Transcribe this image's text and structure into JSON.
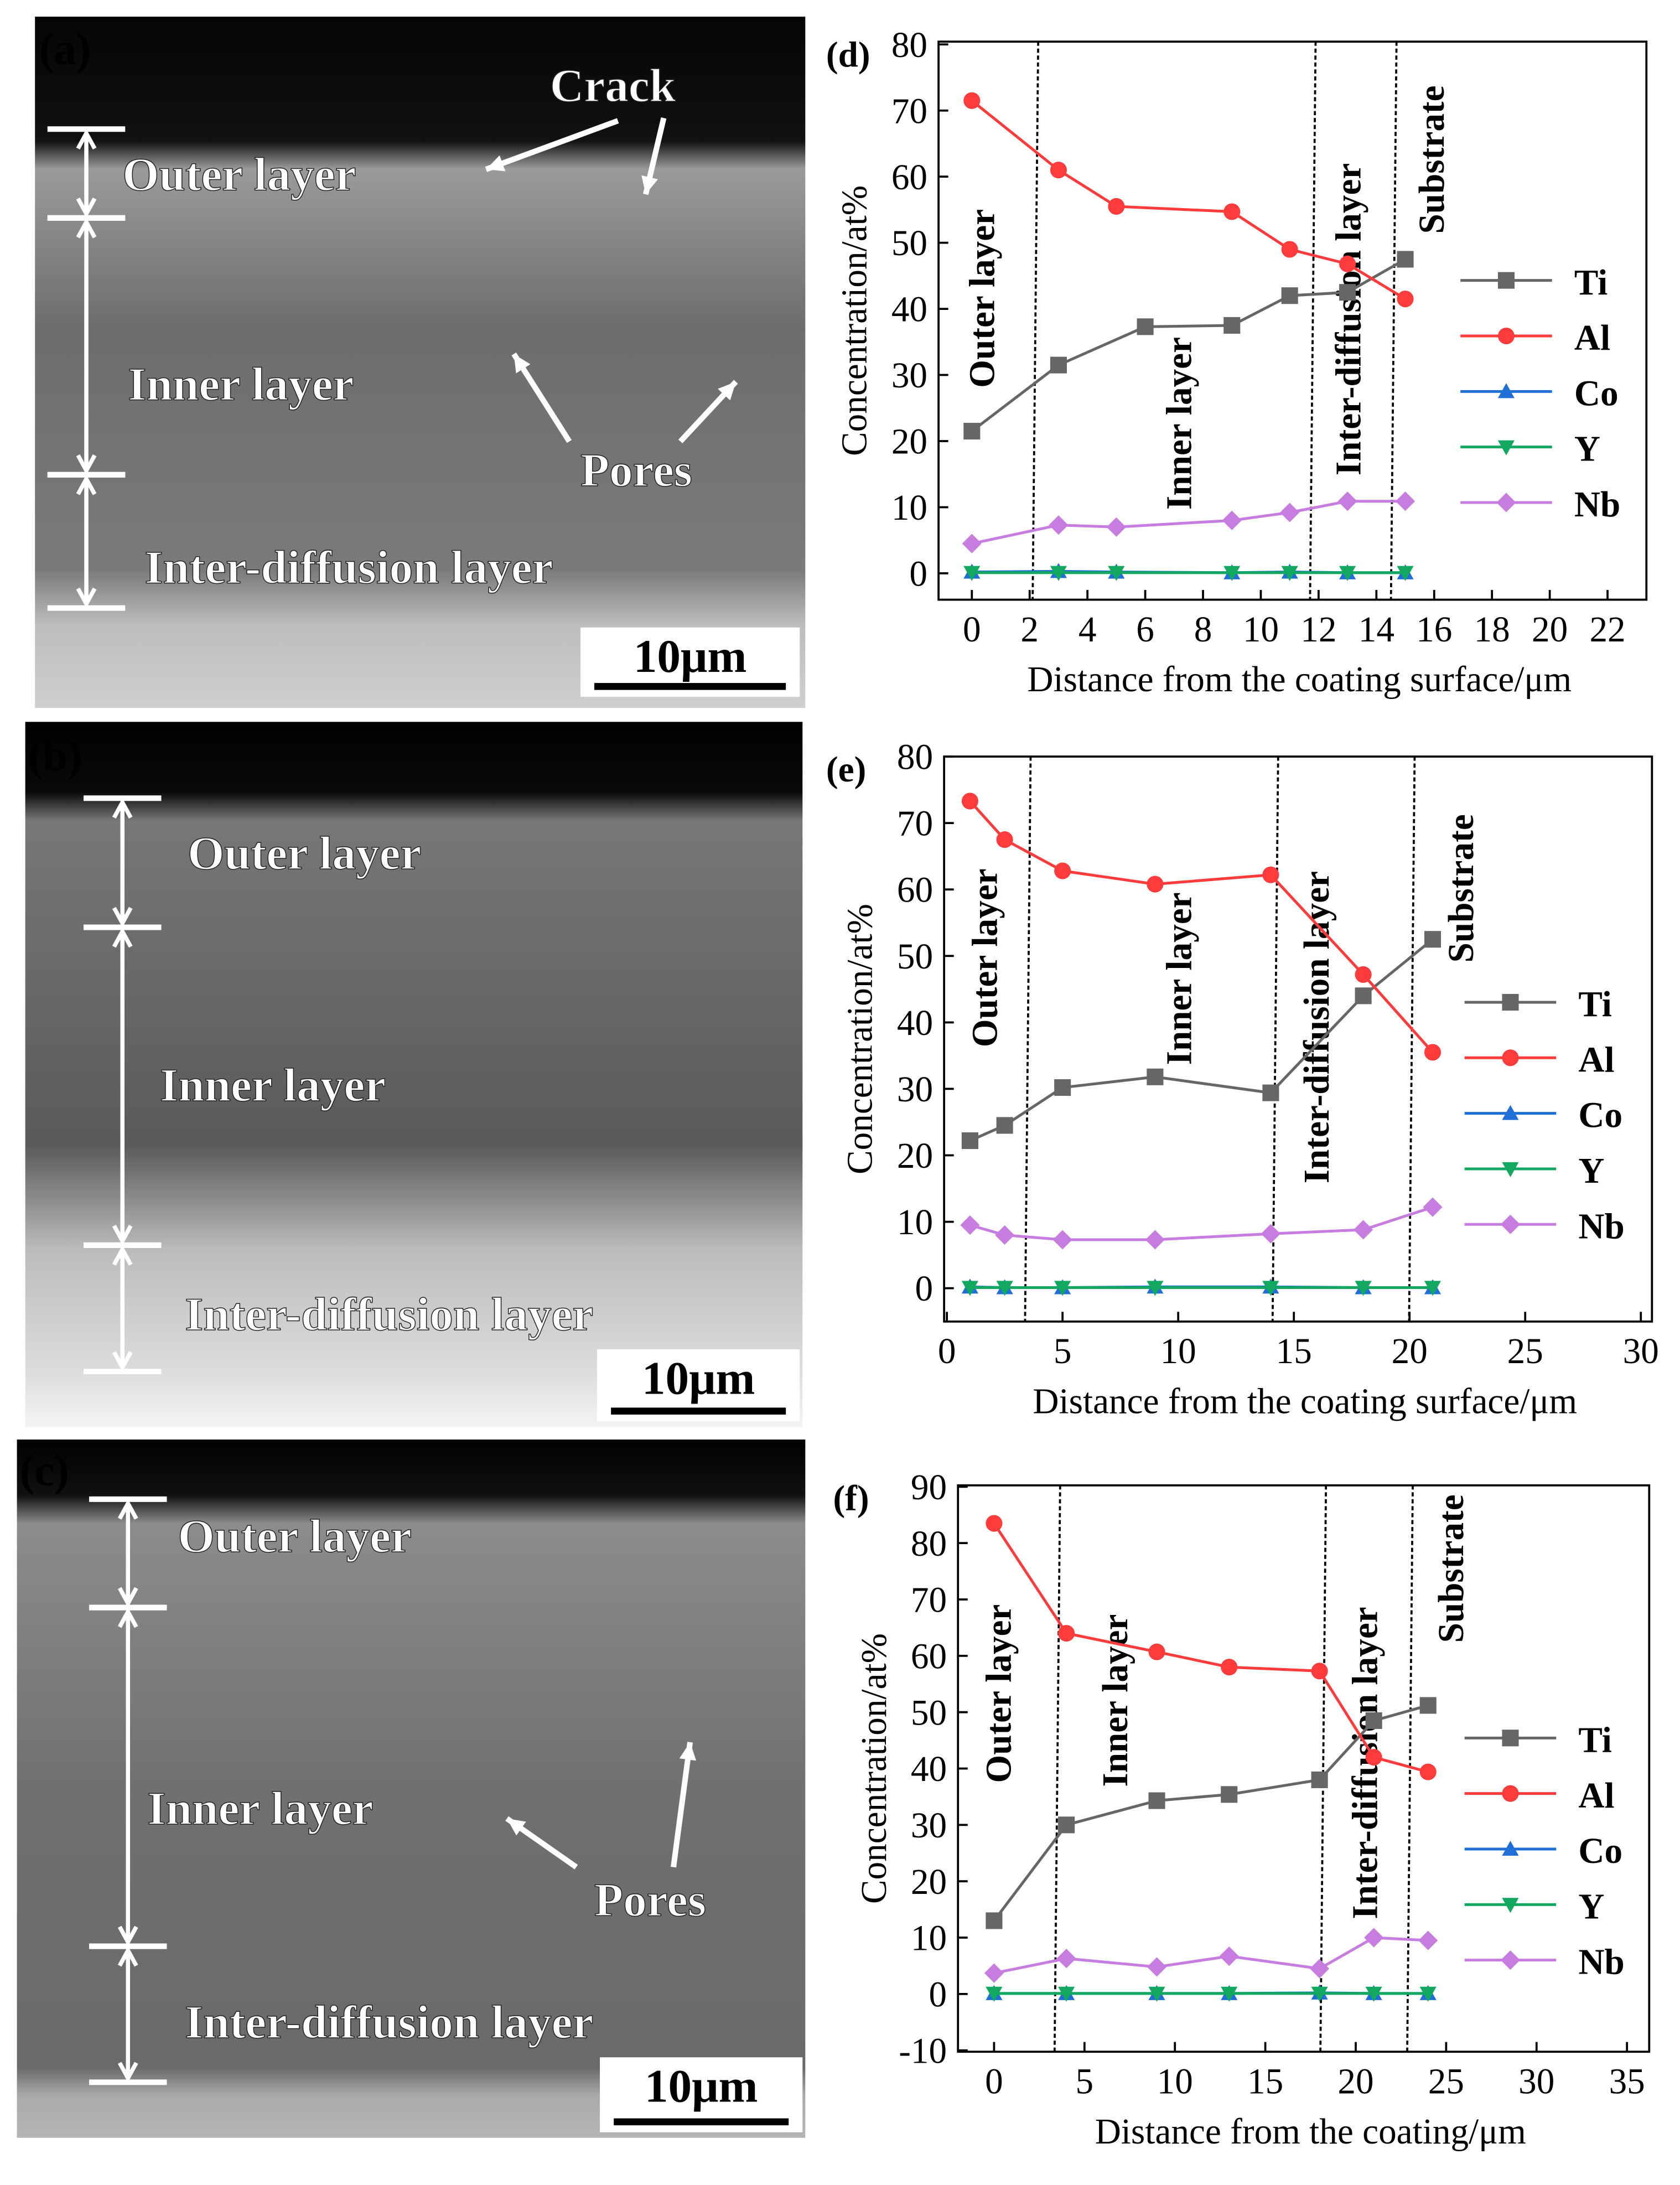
{
  "panels": [
    {
      "letter": "(a)",
      "labels": [
        "Outer layer",
        "Inner layer",
        "Inter-diffusion layer",
        "Crack",
        "Pores"
      ],
      "scale_bar": "10μm"
    },
    {
      "letter": "(b)",
      "labels": [
        "Outer layer",
        "Inner layer",
        "Inter-diffusion layer"
      ],
      "scale_bar": "10μm"
    },
    {
      "letter": "(c)",
      "labels": [
        "Outer layer",
        "Inner layer",
        "Inter-diffusion layer",
        "Pores"
      ],
      "scale_bar": "10μm"
    }
  ],
  "colors": {
    "Ti": "#666666",
    "Al": "#ff3b3b",
    "Co": "#1f6fd6",
    "Y": "#12a860",
    "Nb": "#c77ce0"
  },
  "chart_data": [
    {
      "type": "line",
      "letter": "(d)",
      "xlabel": "Distance from the coating surface/μm",
      "ylabel": "Concentration/at%",
      "xlim": [
        0,
        22
      ],
      "ylim": [
        0,
        80
      ],
      "xticks": [
        0,
        2,
        4,
        6,
        8,
        10,
        12,
        14,
        16,
        18,
        20,
        22
      ],
      "yticks": [
        0,
        10,
        20,
        30,
        40,
        50,
        60,
        70,
        80
      ],
      "boundaries": [
        2.2,
        11.8,
        14.6
      ],
      "regions": [
        "Outer layer",
        "Inner layer",
        "Inter-diffusion layer",
        "Substrate"
      ],
      "x": [
        0,
        3,
        6,
        9,
        11,
        13,
        15
      ],
      "series": [
        {
          "name": "Ti",
          "marker": "square",
          "values": [
            21.5,
            31.5,
            37.3,
            37.5,
            42,
            42.5,
            47.5
          ]
        },
        {
          "name": "Al",
          "marker": "circle",
          "x": [
            0,
            3,
            5,
            9,
            11,
            13,
            15
          ],
          "values": [
            71.5,
            61,
            55.5,
            54.7,
            49,
            46.8,
            41.5
          ]
        },
        {
          "name": "Co",
          "marker": "triangle-up",
          "x": [
            0,
            3,
            5,
            9,
            11,
            13,
            15
          ],
          "values": [
            0.2,
            0.3,
            0.2,
            0.1,
            0.2,
            0.1,
            0.1
          ]
        },
        {
          "name": "Y",
          "marker": "triangle-down",
          "x": [
            0,
            3,
            5,
            9,
            11,
            13,
            15
          ],
          "values": [
            0.1,
            0.1,
            0.1,
            0.1,
            0.1,
            0.1,
            0.1
          ]
        },
        {
          "name": "Nb",
          "marker": "diamond",
          "x": [
            0,
            3,
            5,
            9,
            11,
            13,
            15
          ],
          "values": [
            4.5,
            7.3,
            7.0,
            8.0,
            9.2,
            10.9,
            10.9
          ]
        }
      ]
    },
    {
      "type": "line",
      "letter": "(e)",
      "xlabel": "Distance from the coating surface/μm",
      "ylabel": "Concentration/at%",
      "xlim": [
        0,
        30
      ],
      "ylim": [
        0,
        80
      ],
      "xticks": [
        0,
        5,
        10,
        15,
        20,
        25,
        30
      ],
      "yticks": [
        0,
        10,
        20,
        30,
        40,
        50,
        60,
        70,
        80
      ],
      "boundaries": [
        3.5,
        14.2,
        20.1
      ],
      "regions": [
        "Outer layer",
        "Inner layer",
        "Inter-diffusion layer",
        "Substrate"
      ],
      "x": [
        1,
        2.5,
        5,
        9,
        14,
        18,
        21
      ],
      "series": [
        {
          "name": "Ti",
          "marker": "square",
          "values": [
            22.2,
            24.5,
            30.2,
            31.8,
            29.4,
            44,
            52.5
          ]
        },
        {
          "name": "Al",
          "marker": "circle",
          "values": [
            73.3,
            67.5,
            62.8,
            60.8,
            62.2,
            47.2,
            35.5
          ]
        },
        {
          "name": "Co",
          "marker": "triangle-up",
          "values": [
            0.2,
            0.1,
            0.1,
            0.2,
            0.2,
            0.1,
            0.1
          ]
        },
        {
          "name": "Y",
          "marker": "triangle-down",
          "values": [
            0.1,
            0.1,
            0.1,
            0.1,
            0.1,
            0.1,
            0.1
          ]
        },
        {
          "name": "Nb",
          "marker": "diamond",
          "values": [
            9.5,
            8,
            7.3,
            7.3,
            8.2,
            8.8,
            12.2
          ]
        }
      ]
    },
    {
      "type": "line",
      "letter": "(f)",
      "xlabel": "Distance from the coating/μm",
      "ylabel": "Concentration/at%",
      "xlim": [
        -2,
        35
      ],
      "ylim": [
        -10,
        90
      ],
      "xticks": [
        0,
        5,
        10,
        15,
        20,
        25,
        30,
        35
      ],
      "yticks": [
        -10,
        0,
        10,
        20,
        30,
        40,
        50,
        60,
        70,
        80,
        90
      ],
      "boundaries": [
        3.5,
        18.2,
        23
      ],
      "regions": [
        "Outer layer",
        "Inner layer",
        "Inter-diffusion layer",
        "Substrate"
      ],
      "x": [
        0,
        4,
        9,
        13,
        18,
        21,
        24
      ],
      "series": [
        {
          "name": "Ti",
          "marker": "square",
          "values": [
            13,
            30,
            34.3,
            35.4,
            38,
            48.5,
            51.2
          ]
        },
        {
          "name": "Al",
          "marker": "circle",
          "values": [
            83.5,
            64,
            60.7,
            58,
            57.3,
            42,
            39.4
          ]
        },
        {
          "name": "Co",
          "marker": "triangle-up",
          "values": [
            0.1,
            0.1,
            0.1,
            0.1,
            0.2,
            0.1,
            0.1
          ]
        },
        {
          "name": "Y",
          "marker": "triangle-down",
          "values": [
            0.1,
            0.1,
            0.1,
            0.1,
            0.1,
            0.1,
            0.1
          ]
        },
        {
          "name": "Nb",
          "marker": "diamond",
          "values": [
            3.7,
            6.3,
            4.8,
            6.7,
            4.5,
            10,
            9.5
          ]
        }
      ]
    }
  ]
}
